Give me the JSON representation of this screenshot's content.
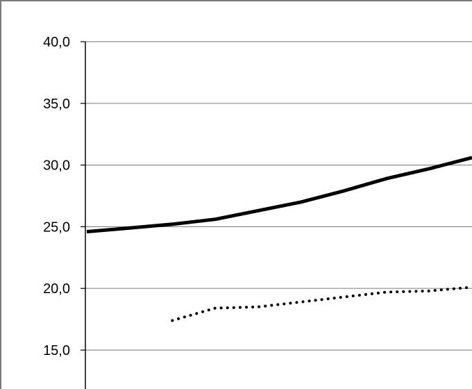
{
  "chart_data": {
    "type": "line",
    "title": "",
    "xlabel": "",
    "ylabel": "",
    "ylim": [
      12.0,
      40.0
    ],
    "yticks": [
      "15,0",
      "20,0",
      "25,0",
      "30,0",
      "35,0",
      "40,0"
    ],
    "ytick_values": [
      15,
      20,
      25,
      30,
      35,
      40
    ],
    "grid": true,
    "legend": "none",
    "x": [
      0,
      1,
      2,
      3,
      4,
      5,
      6,
      7,
      8,
      9
    ],
    "series": [
      {
        "style": "solid",
        "color": "#000000",
        "values": [
          24.6,
          24.9,
          25.2,
          25.6,
          26.3,
          27.0,
          27.9,
          28.9,
          29.7,
          30.6
        ]
      },
      {
        "style": "dotted",
        "color": "#000000",
        "values": [
          null,
          null,
          17.4,
          18.4,
          18.5,
          18.9,
          19.3,
          19.7,
          19.8,
          20.1
        ]
      }
    ]
  }
}
